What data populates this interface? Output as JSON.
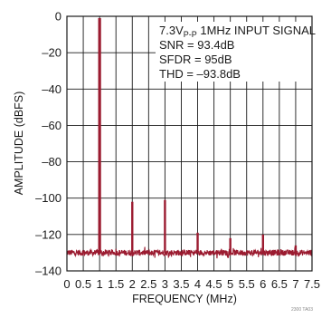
{
  "chart_data": {
    "type": "line",
    "title": "",
    "xlabel": "FREQUENCY (MHz)",
    "ylabel": "AMPLITUDE (dBFS)",
    "xlim": [
      0,
      7.5
    ],
    "ylim": [
      -140,
      0
    ],
    "x_ticks": [
      "0",
      "0.5",
      "1",
      "1.5",
      "2",
      "2.5",
      "3",
      "3.5",
      "4",
      "4.5",
      "5",
      "5.5",
      "6",
      "6.5",
      "7",
      "7.5"
    ],
    "y_ticks": [
      "0",
      "–20",
      "–40",
      "–60",
      "–80",
      "–100",
      "–120",
      "–140"
    ],
    "grid": true,
    "noise_floor": -130,
    "peaks": [
      {
        "x": 1.0,
        "y": -1
      },
      {
        "x": 2.0,
        "y": -102
      },
      {
        "x": 3.0,
        "y": -101
      },
      {
        "x": 4.0,
        "y": -119
      },
      {
        "x": 5.0,
        "y": -122
      },
      {
        "x": 6.0,
        "y": -120
      },
      {
        "x": 7.0,
        "y": -126
      }
    ],
    "line_color": "#9b1b30",
    "annotations": {
      "line1_main": "7.3V",
      "line1_sub": "P-P",
      "line1_rest": " 1MHz INPUT SIGNAL",
      "snr": "SNR = 93.4dB",
      "sfdr": "SFDR = 95dB",
      "thd": "THD = –93.8dB"
    },
    "footer_code": "2300 TA03"
  }
}
